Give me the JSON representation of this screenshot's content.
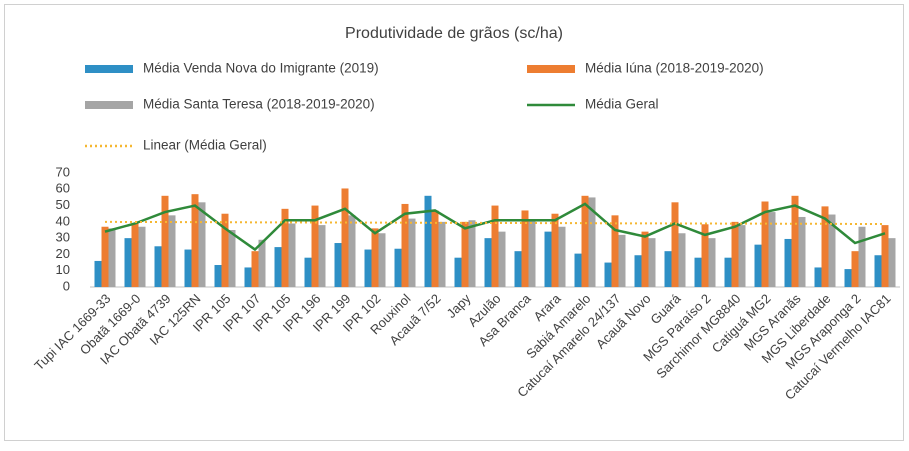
{
  "chart_data": {
    "type": "bar",
    "title": "Produtividade de grãos (sc/ha)",
    "categories": [
      "Tupi IAC 1669-33",
      "Obatã 1669-0",
      "IAC Obatã 4739",
      "IAC 125RN",
      "IPR 105",
      "IPR 107",
      "IPR 105",
      "IPR 196",
      "IPR 199",
      "IPR 102",
      "Rouxinol",
      "Acauã 7/52",
      "Japy",
      "Azulão",
      "Asa Branca",
      "Arara",
      "Sabiá Amarelo",
      "Catucaí Amarelo 24/137",
      "Acauã Novo",
      "Guará",
      "MGS Paraíso 2",
      "Sarchimor MG8840",
      "Catiguá MG2",
      "MGS Aranãs",
      "MGS Liberdade",
      "MGS Araponga 2",
      "Catucaí Vermelho IAC81"
    ],
    "series": [
      {
        "name": "Média Venda Nova do Imigrante (2019)",
        "type": "bar",
        "color": "#2e8fc5",
        "values": [
          16,
          30,
          25,
          23,
          13.5,
          12,
          24.5,
          18,
          27,
          23,
          23.5,
          56,
          18,
          30,
          22,
          34,
          20.5,
          15,
          19.5,
          22,
          18,
          18,
          26,
          29.5,
          12,
          11,
          19.5
        ]
      },
      {
        "name": "Média Iúna (2018-2019-2020)",
        "type": "bar",
        "color": "#ed7d31",
        "values": [
          37,
          39,
          56,
          57,
          45,
          22,
          48,
          50,
          60.5,
          36,
          51,
          47,
          40,
          50,
          47,
          45,
          56,
          44,
          34,
          52,
          38.5,
          40,
          52.5,
          56,
          49.5,
          22,
          38
        ]
      },
      {
        "name": "Média Santa Teresa (2018-2019-2020)",
        "type": "bar",
        "color": "#a5a5a5",
        "values": [
          36,
          37,
          44,
          52,
          35,
          29,
          39,
          38,
          44,
          33,
          42,
          40,
          41,
          34,
          41,
          37,
          55,
          32,
          30,
          33,
          30,
          38,
          46,
          43,
          44.5,
          37,
          30
        ]
      },
      {
        "name": "Média Geral",
        "type": "line",
        "color": "#2f8a3a",
        "values": [
          34,
          39,
          46,
          50,
          36,
          23,
          41,
          41,
          48,
          33,
          45,
          47,
          36,
          41,
          41,
          41,
          51,
          35,
          31,
          39,
          32,
          37,
          46,
          50,
          42,
          27,
          33
        ]
      },
      {
        "name": "Linear (Média Geral)",
        "type": "dotted",
        "color": "#f5b731",
        "values": [
          40,
          39.9,
          39.9,
          39.8,
          39.8,
          39.7,
          39.7,
          39.6,
          39.6,
          39.5,
          39.5,
          39.4,
          39.4,
          39.3,
          39.3,
          39.2,
          39.2,
          39.1,
          39.1,
          39,
          39,
          38.9,
          38.9,
          38.8,
          38.8,
          38.7,
          38.7
        ]
      }
    ],
    "ylim": [
      0,
      70
    ],
    "yticks": [
      0,
      10,
      20,
      30,
      40,
      50,
      60,
      70
    ],
    "grid": false
  }
}
